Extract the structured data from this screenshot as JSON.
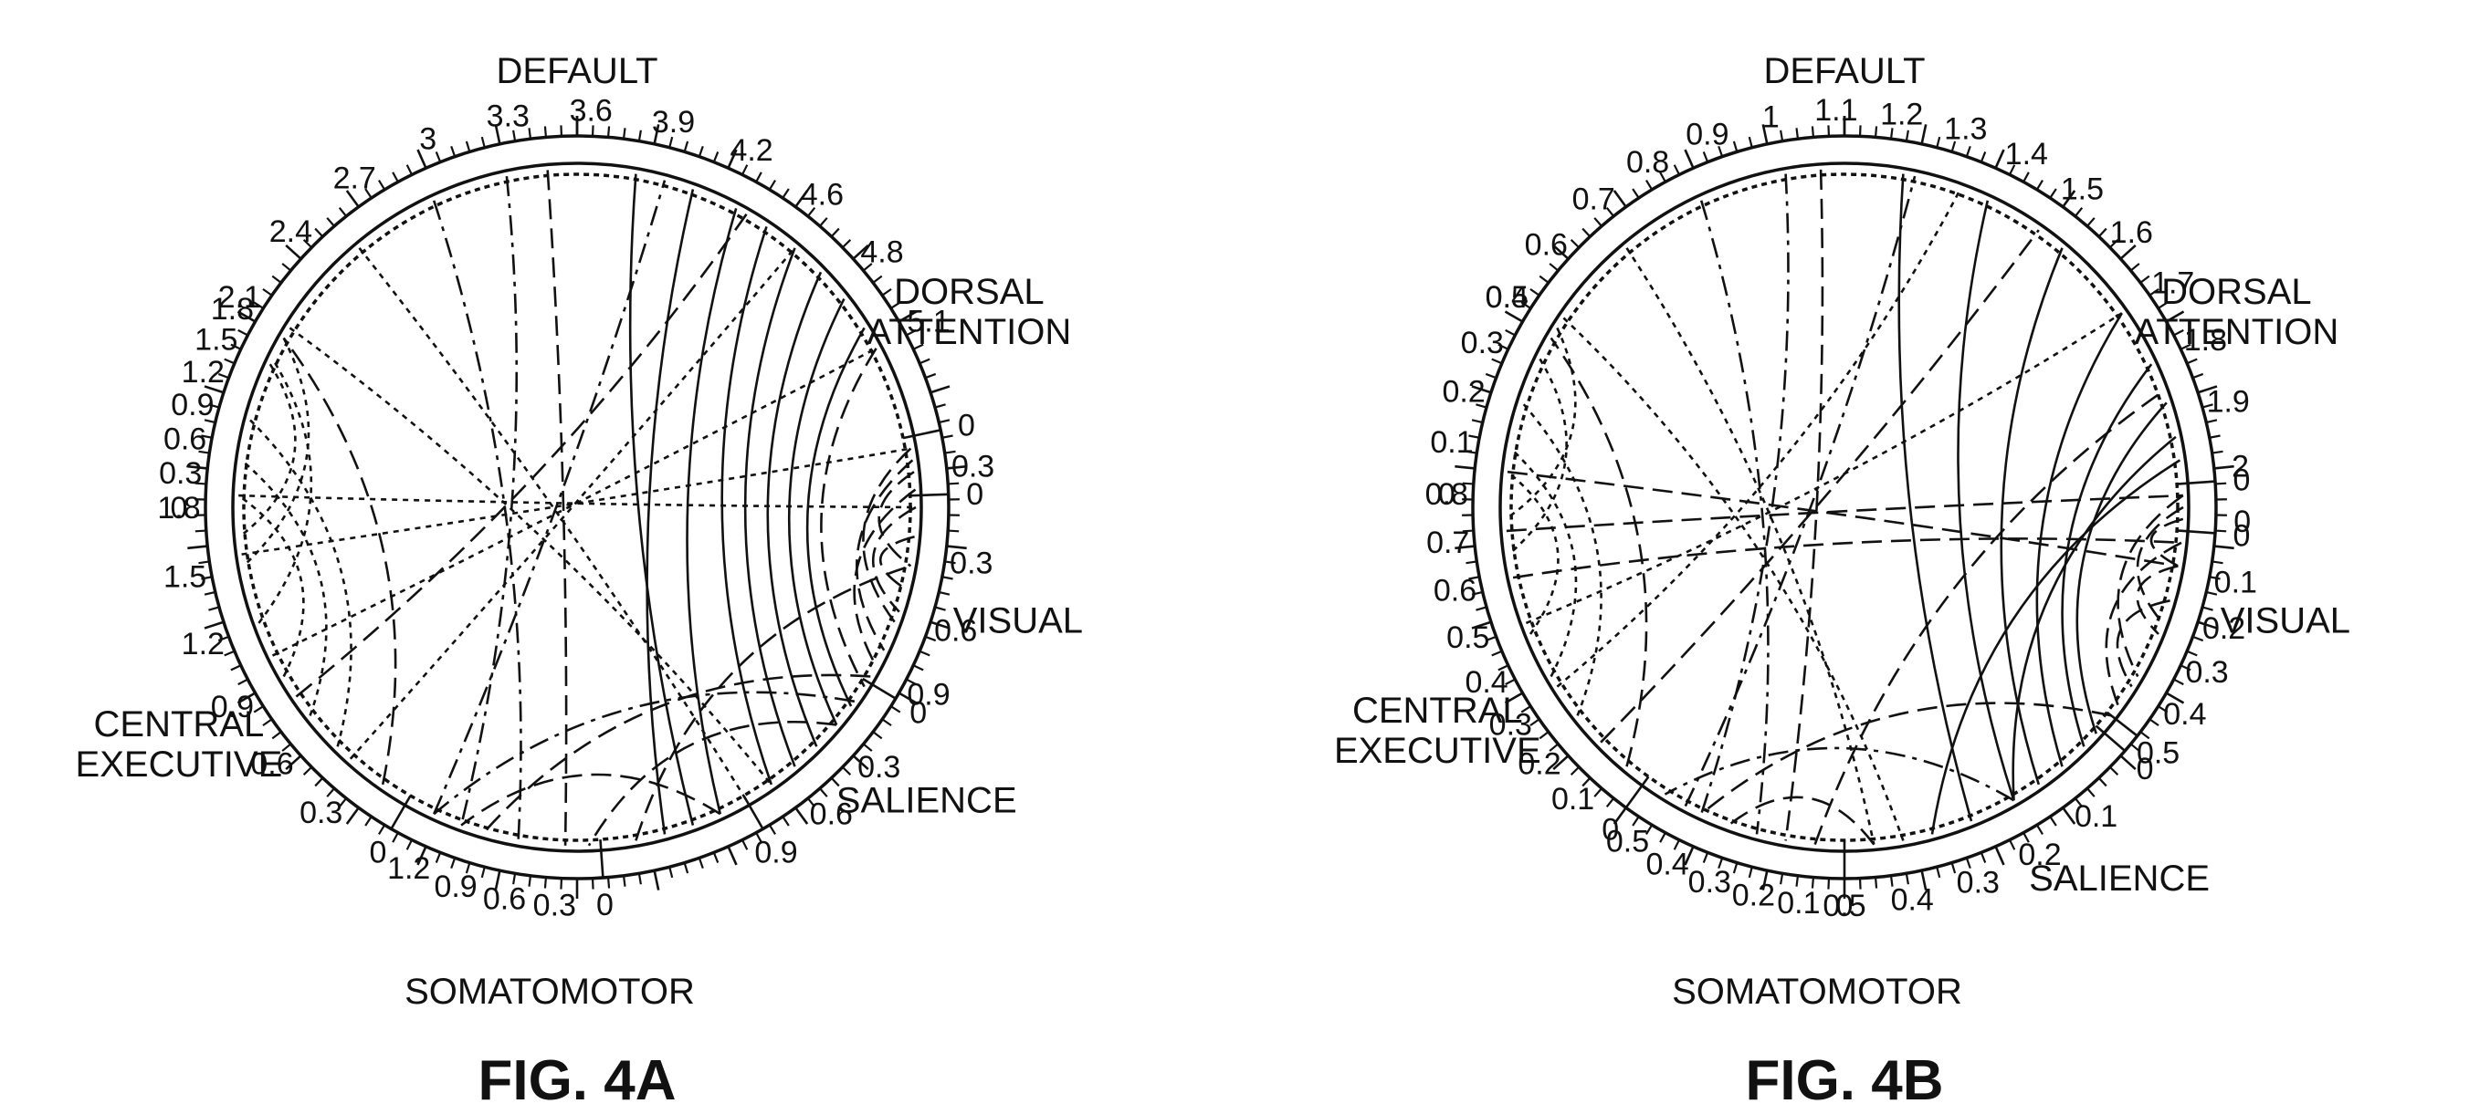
{
  "figures": [
    {
      "id": "fig-4a",
      "caption": "FIG. 4A",
      "networks": [
        {
          "key": "default",
          "label_lines": [
            "DEFAULT"
          ],
          "ticks": [
            "2.1",
            "2.4",
            "2.7",
            "3",
            "3.3",
            "3.6",
            "3.9",
            "4.2",
            "4.6",
            "4.8",
            "5.1"
          ]
        },
        {
          "key": "dorsal",
          "label_lines": [
            "DORSAL",
            "ATTENTION"
          ],
          "ticks": [
            "0",
            "0.3"
          ]
        },
        {
          "key": "visual",
          "label_lines": [
            "VISUAL"
          ],
          "ticks": [
            "0",
            "0.3",
            "0.6",
            "0.9"
          ]
        },
        {
          "key": "salience",
          "label_lines": [
            "SALIENCE"
          ],
          "ticks": [
            "0",
            "0.3",
            "0.6",
            "0.9"
          ]
        },
        {
          "key": "somatomotor",
          "label_lines": [
            "SOMATOMOTOR"
          ],
          "ticks": [
            "0",
            "0.3",
            "0.6",
            "0.9",
            "1.2"
          ]
        },
        {
          "key": "central",
          "label_lines": [
            "CENTRAL",
            "EXECUTIVE"
          ],
          "ticks": [
            "0",
            "0.3",
            "0.6",
            "0.9",
            "1.2",
            "1.5",
            "1.8"
          ]
        },
        {
          "key": "default_cont",
          "label_lines": [],
          "ticks": [
            "0",
            "0.3",
            "0.6",
            "0.9",
            "1.2",
            "1.5",
            "1.8"
          ]
        }
      ]
    },
    {
      "id": "fig-4b",
      "caption": "FIG. 4B",
      "networks": [
        {
          "key": "default",
          "label_lines": [
            "DEFAULT"
          ],
          "ticks": [
            "0.5",
            "0.6",
            "0.7",
            "0.8",
            "0.9",
            "1",
            "1.1",
            "1.2",
            "1.3",
            "1.4",
            "1.5",
            "1.6",
            "1.7",
            "1.8",
            "1.9",
            "2"
          ]
        },
        {
          "key": "dorsal",
          "label_lines": [
            "DORSAL",
            "ATTENTION"
          ],
          "ticks": [
            "0",
            "0"
          ]
        },
        {
          "key": "visual",
          "label_lines": [
            "VISUAL"
          ],
          "ticks": [
            "0",
            "0.1",
            "0.2",
            "0.3",
            "0.4",
            "0.5"
          ]
        },
        {
          "key": "salience",
          "label_lines": [
            "SALIENCE"
          ],
          "ticks": [
            "0",
            "0.1",
            "0.2",
            "0.3",
            "0.4",
            "0.5"
          ]
        },
        {
          "key": "somatomotor",
          "label_lines": [
            "SOMATOMOTOR"
          ],
          "ticks": [
            "0",
            "0.1",
            "0.2",
            "0.3",
            "0.4",
            "0.5"
          ]
        },
        {
          "key": "central",
          "label_lines": [
            "CENTRAL",
            "EXECUTIVE"
          ],
          "ticks": [
            "0",
            "0.1",
            "0.2",
            "0.3",
            "0.4",
            "0.5",
            "0.6",
            "0.7",
            "0.8"
          ]
        },
        {
          "key": "default_cont",
          "label_lines": [],
          "ticks": [
            "0",
            "0.1",
            "0.2",
            "0.3",
            "0.4"
          ]
        }
      ]
    }
  ]
}
